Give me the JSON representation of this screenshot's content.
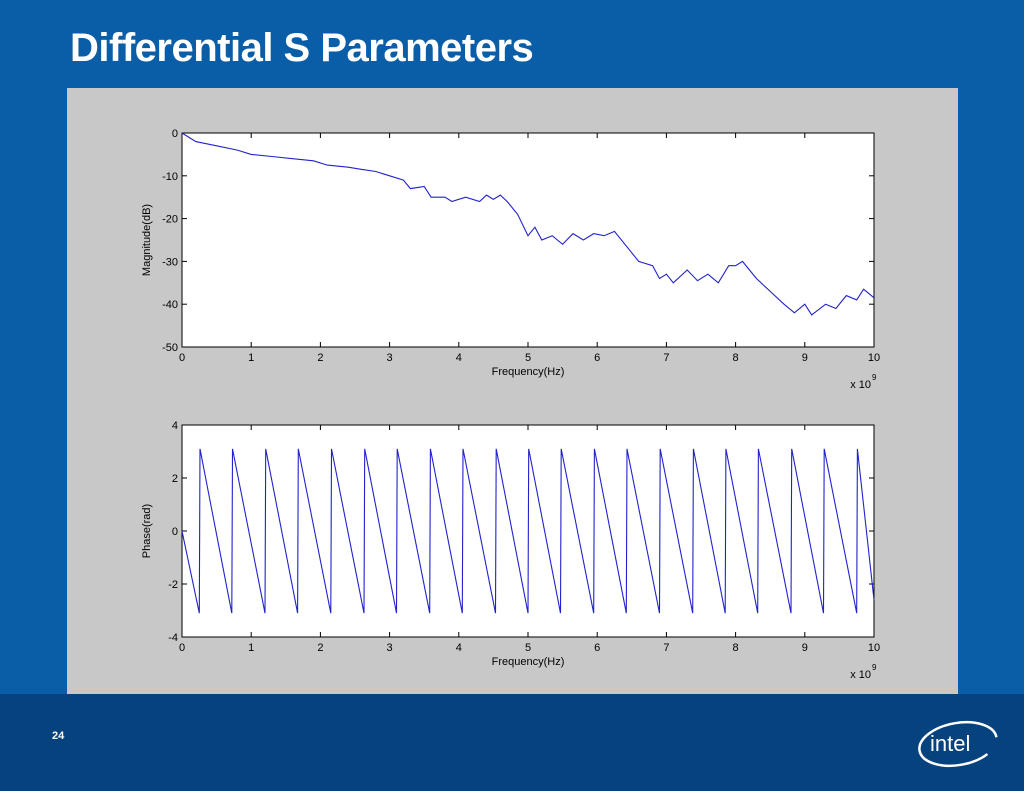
{
  "slide": {
    "title": "Differential S Parameters",
    "page_number": "24",
    "logo_text": "intel"
  },
  "colors": {
    "background": "#0a5ea8",
    "footer_band": "#06427e",
    "figure_background": "#c8c8c8",
    "plot_background": "#ffffff",
    "line": "#2222cc"
  },
  "chart_data": [
    {
      "type": "line",
      "xlabel": "Frequency(Hz)",
      "ylabel": "Magnitude(dB)",
      "x_multiplier": "x 10",
      "x_multiplier_exponent": "9",
      "xlim": [
        0,
        10
      ],
      "ylim": [
        -50,
        0
      ],
      "xticks": [
        0,
        1,
        2,
        3,
        4,
        5,
        6,
        7,
        8,
        9,
        10
      ],
      "yticks": [
        0,
        -10,
        -20,
        -30,
        -40,
        -50
      ],
      "grid": false,
      "series": [
        {
          "x": [
            0,
            0.2,
            0.5,
            0.8,
            1.0,
            1.3,
            1.6,
            1.9,
            2.1,
            2.4,
            2.6,
            2.8,
            3.0,
            3.2,
            3.3,
            3.5,
            3.6,
            3.8,
            3.9,
            4.0,
            4.1,
            4.3,
            4.4,
            4.5,
            4.6,
            4.7,
            4.85,
            5.0,
            5.1,
            5.2,
            5.35,
            5.5,
            5.65,
            5.8,
            5.95,
            6.1,
            6.25,
            6.4,
            6.6,
            6.8,
            6.9,
            7.0,
            7.1,
            7.3,
            7.45,
            7.6,
            7.75,
            7.9,
            8.0,
            8.1,
            8.3,
            8.5,
            8.7,
            8.85,
            9.0,
            9.1,
            9.3,
            9.45,
            9.6,
            9.75,
            9.85,
            10.0
          ],
          "y": [
            0,
            -2,
            -3,
            -4,
            -5,
            -5.5,
            -6,
            -6.5,
            -7.5,
            -8,
            -8.5,
            -9,
            -10,
            -11,
            -13,
            -12.5,
            -15,
            -15,
            -16,
            -15.5,
            -15,
            -16,
            -14.5,
            -15.5,
            -14.5,
            -16,
            -19,
            -24,
            -22,
            -25,
            -24,
            -26,
            -23.5,
            -25,
            -23.5,
            -24,
            -23,
            -26,
            -30,
            -31,
            -34,
            -33,
            -35,
            -32,
            -34.5,
            -33,
            -35,
            -31,
            -31,
            -30,
            -34,
            -37,
            -40,
            -42,
            -40,
            -42.5,
            -40,
            -41,
            -38,
            -39,
            -36.5,
            -38.5
          ]
        }
      ]
    },
    {
      "type": "line",
      "xlabel": "Frequency(Hz)",
      "ylabel": "Phase(rad)",
      "x_multiplier": "x 10",
      "x_multiplier_exponent": "9",
      "xlim": [
        0,
        10
      ],
      "ylim": [
        -4,
        4
      ],
      "xticks": [
        0,
        1,
        2,
        3,
        4,
        5,
        6,
        7,
        8,
        9,
        10
      ],
      "yticks": [
        4,
        2,
        0,
        -2,
        -4
      ],
      "grid": false,
      "series": [
        {
          "x": [
            0,
            0.25,
            0.26,
            0.72,
            0.73,
            1.2,
            1.21,
            1.67,
            1.68,
            2.15,
            2.16,
            2.63,
            2.64,
            3.1,
            3.11,
            3.58,
            3.59,
            4.05,
            4.06,
            4.53,
            4.54,
            5.0,
            5.01,
            5.47,
            5.48,
            5.95,
            5.96,
            6.42,
            6.43,
            6.9,
            6.91,
            7.38,
            7.39,
            7.85,
            7.86,
            8.32,
            8.33,
            8.8,
            8.81,
            9.27,
            9.28,
            9.75,
            9.76,
            10.0
          ],
          "y": [
            0,
            -3.1,
            3.1,
            -3.1,
            3.1,
            -3.1,
            3.1,
            -3.1,
            3.1,
            -3.1,
            3.1,
            -3.1,
            3.1,
            -3.1,
            3.1,
            -3.1,
            3.1,
            -3.1,
            3.1,
            -3.1,
            3.1,
            -3.1,
            3.1,
            -3.1,
            3.1,
            -3.1,
            3.1,
            -3.1,
            3.1,
            -3.1,
            3.1,
            -3.1,
            3.1,
            -3.1,
            3.1,
            -3.1,
            3.1,
            -3.1,
            3.1,
            -3.1,
            3.1,
            -3.1,
            3.1,
            -2.6
          ]
        }
      ]
    }
  ]
}
